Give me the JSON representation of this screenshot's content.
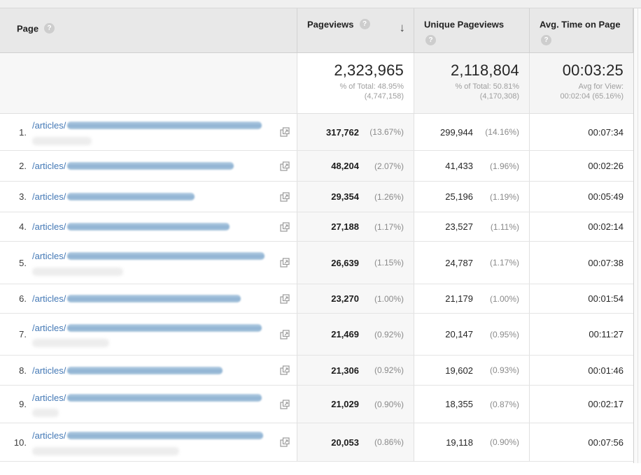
{
  "ui": {
    "help_glyph": "?",
    "sort_glyph": "↓"
  },
  "colors": {
    "header_bg": "#e8e8e8",
    "sorted_col_bg": "#f7f7f7",
    "link_blue": "#4479b6",
    "pct_gray": "#8a8a8a"
  },
  "table": {
    "columns": [
      {
        "label": "Page",
        "help": true
      },
      {
        "label": "Pageviews",
        "help": true,
        "sorted": "desc"
      },
      {
        "label": "Unique Pageviews",
        "help": true
      },
      {
        "label": "Avg. Time on Page",
        "help": true
      }
    ],
    "totals": {
      "pageviews": {
        "value": "2,323,965",
        "line2": "% of Total: 48.95%",
        "line3": "(4,747,158)"
      },
      "unique_pageviews": {
        "value": "2,118,804",
        "line2": "% of Total: 50.81%",
        "line3": "(4,170,308)"
      },
      "avg_time": {
        "value": "00:03:25",
        "line2": "Avg for View:",
        "line3": "00:02:04 (65.16%)"
      }
    },
    "rows": [
      {
        "rank": "1.",
        "url_prefix": "/articles/",
        "pageviews": "317,762",
        "pageviews_pct": "(13.67%)",
        "unique": "299,944",
        "unique_pct": "(14.16%)",
        "avg_time": "00:07:34"
      },
      {
        "rank": "2.",
        "url_prefix": "/articles/",
        "pageviews": "48,204",
        "pageviews_pct": "(2.07%)",
        "unique": "41,433",
        "unique_pct": "(1.96%)",
        "avg_time": "00:02:26"
      },
      {
        "rank": "3.",
        "url_prefix": "/articles/",
        "pageviews": "29,354",
        "pageviews_pct": "(1.26%)",
        "unique": "25,196",
        "unique_pct": "(1.19%)",
        "avg_time": "00:05:49"
      },
      {
        "rank": "4.",
        "url_prefix": "/articles/",
        "pageviews": "27,188",
        "pageviews_pct": "(1.17%)",
        "unique": "23,527",
        "unique_pct": "(1.11%)",
        "avg_time": "00:02:14"
      },
      {
        "rank": "5.",
        "url_prefix": "/articles/",
        "pageviews": "26,639",
        "pageviews_pct": "(1.15%)",
        "unique": "24,787",
        "unique_pct": "(1.17%)",
        "avg_time": "00:07:38"
      },
      {
        "rank": "6.",
        "url_prefix": "/articles/",
        "pageviews": "23,270",
        "pageviews_pct": "(1.00%)",
        "unique": "21,179",
        "unique_pct": "(1.00%)",
        "avg_time": "00:01:54"
      },
      {
        "rank": "7.",
        "url_prefix": "/articles/",
        "pageviews": "21,469",
        "pageviews_pct": "(0.92%)",
        "unique": "20,147",
        "unique_pct": "(0.95%)",
        "avg_time": "00:11:27"
      },
      {
        "rank": "8.",
        "url_prefix": "/articles/",
        "pageviews": "21,306",
        "pageviews_pct": "(0.92%)",
        "unique": "19,602",
        "unique_pct": "(0.93%)",
        "avg_time": "00:01:46"
      },
      {
        "rank": "9.",
        "url_prefix": "/articles/",
        "pageviews": "21,029",
        "pageviews_pct": "(0.90%)",
        "unique": "18,355",
        "unique_pct": "(0.87%)",
        "avg_time": "00:02:17"
      },
      {
        "rank": "10.",
        "url_prefix": "/articles/",
        "pageviews": "20,053",
        "pageviews_pct": "(0.86%)",
        "unique": "19,118",
        "unique_pct": "(0.90%)",
        "avg_time": "00:07:56"
      }
    ]
  }
}
